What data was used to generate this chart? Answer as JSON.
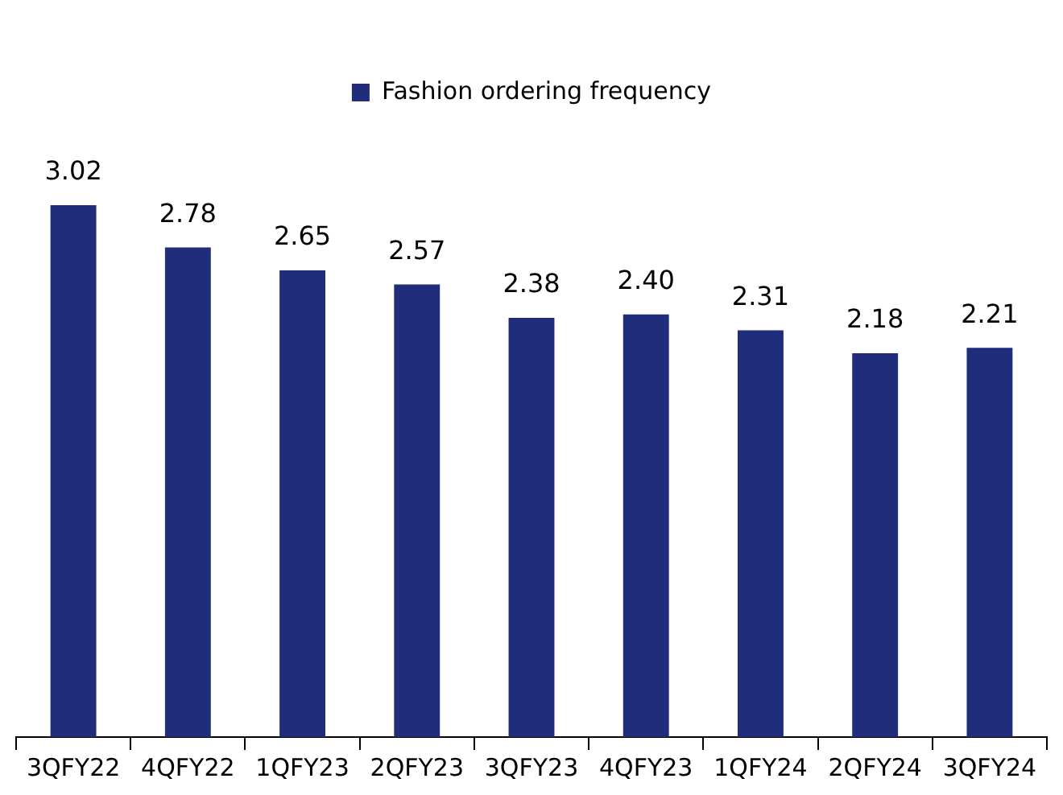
{
  "chart_data": {
    "type": "bar",
    "categories": [
      "3QFY22",
      "4QFY22",
      "1QFY23",
      "2QFY23",
      "3QFY23",
      "4QFY23",
      "1QFY24",
      "2QFY24",
      "3QFY24"
    ],
    "series": [
      {
        "name": "Fashion ordering frequency",
        "color": "#1f2d7b",
        "values": [
          3.02,
          2.78,
          2.65,
          2.57,
          2.38,
          2.4,
          2.31,
          2.18,
          2.21
        ],
        "value_labels": [
          "3.02",
          "2.78",
          "2.65",
          "2.57",
          "2.38",
          "2.40",
          "2.31",
          "2.18",
          "2.21"
        ]
      }
    ],
    "legend": "top",
    "grid": false,
    "tick_labels": "x"
  }
}
